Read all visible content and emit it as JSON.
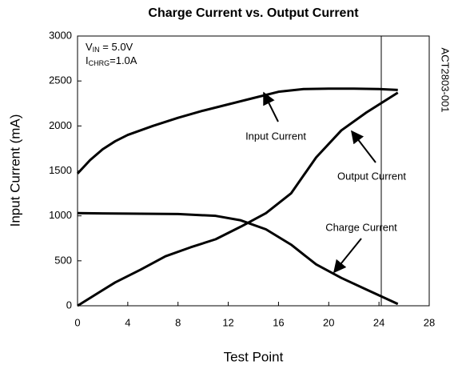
{
  "chart_data": {
    "type": "line",
    "title": "Charge Current vs. Output Current",
    "x_label": "Test Point",
    "y_label": "Input Current (mA)",
    "annotations": {
      "vin": {
        "main": "V",
        "sub": "IN",
        "rest": " = 5.0V"
      },
      "ichrg": {
        "main": "I",
        "sub": "CHRG",
        "rest": "=1.0A"
      },
      "code": "ACT2803-001",
      "input": "Input Current",
      "output": "Output Current",
      "charge": "Charge Current"
    },
    "xlim": [
      0,
      28
    ],
    "xticks": [
      0,
      4,
      8,
      12,
      16,
      20,
      24,
      28
    ],
    "ylim": [
      0,
      3000
    ],
    "yticks": [
      0,
      500,
      1000,
      1500,
      2000,
      2500,
      3000
    ],
    "series": [
      {
        "name": "Input Current",
        "color": "#000000",
        "x": [
          0,
          1,
          2,
          3,
          4,
          6,
          8,
          10,
          12,
          14,
          16,
          18,
          20,
          22,
          24,
          25.5
        ],
        "values": [
          1470,
          1620,
          1740,
          1830,
          1900,
          2000,
          2090,
          2170,
          2240,
          2310,
          2380,
          2410,
          2415,
          2415,
          2410,
          2400
        ]
      },
      {
        "name": "Output Current",
        "color": "#000000",
        "x": [
          0,
          3,
          5,
          7,
          9,
          11,
          13,
          15,
          17,
          19,
          21,
          23,
          25.5
        ],
        "values": [
          0,
          260,
          400,
          550,
          650,
          740,
          880,
          1030,
          1250,
          1650,
          1950,
          2150,
          2370
        ]
      },
      {
        "name": "Charge Current",
        "color": "#000000",
        "x": [
          0,
          4,
          8,
          11,
          13,
          15,
          17,
          19,
          21,
          23,
          25.5
        ],
        "values": [
          1030,
          1025,
          1020,
          1000,
          950,
          850,
          680,
          460,
          310,
          180,
          20
        ]
      }
    ]
  }
}
